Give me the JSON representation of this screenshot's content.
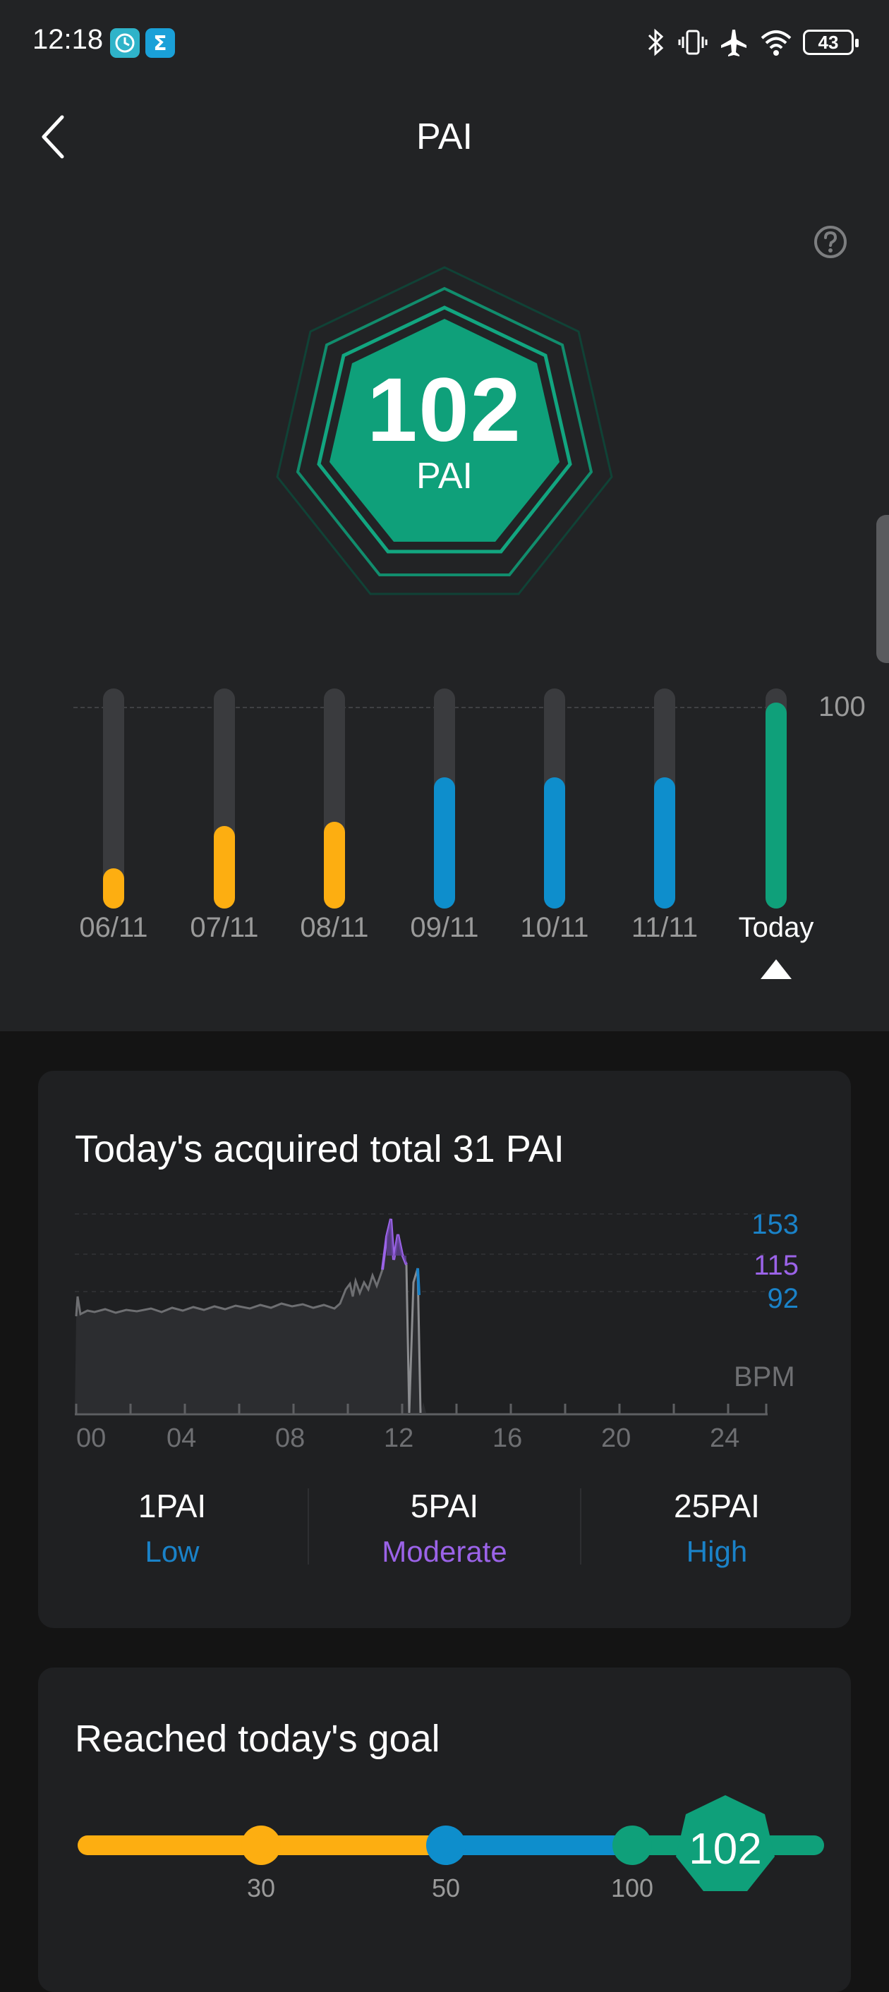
{
  "status": {
    "time": "12:18",
    "battery": "43"
  },
  "header": {
    "title": "PAI"
  },
  "score": {
    "value": "102",
    "unit": "PAI"
  },
  "weekly": {
    "reference_label": "100",
    "days": [
      {
        "label": "06/11",
        "value": 20,
        "color": "#fdae11"
      },
      {
        "label": "07/11",
        "value": 41,
        "color": "#fdae11"
      },
      {
        "label": "08/11",
        "value": 43,
        "color": "#fdae11"
      },
      {
        "label": "09/11",
        "value": 65,
        "color": "#0e8ecc"
      },
      {
        "label": "10/11",
        "value": 65,
        "color": "#0e8ecc"
      },
      {
        "label": "11/11",
        "value": 65,
        "color": "#0e8ecc"
      },
      {
        "label": "Today",
        "value": 102,
        "color": "#0fa07a"
      }
    ]
  },
  "today_card": {
    "title": "Today's acquired total 31 PAI",
    "thresholds": [
      {
        "value": "153",
        "color": "#1a82c8"
      },
      {
        "value": "115",
        "color": "#9b63e8"
      },
      {
        "value": "92",
        "color": "#1a82c8"
      }
    ],
    "unit": "BPM",
    "x_ticks": [
      "00",
      "04",
      "08",
      "12",
      "16",
      "20",
      "24"
    ],
    "levels": [
      {
        "value": "1PAI",
        "name": "Low",
        "color": "#1a82c8"
      },
      {
        "value": "5PAI",
        "name": "Moderate",
        "color": "#9b63e8"
      },
      {
        "value": "25PAI",
        "name": "High",
        "color": "#1a82c8"
      }
    ]
  },
  "goal_card": {
    "title": "Reached today's goal",
    "markers": [
      "30",
      "50",
      "100"
    ],
    "current": "102",
    "colors": {
      "low": "#fdae11",
      "mid": "#0e8ecc",
      "high": "#0fa07a"
    }
  }
}
